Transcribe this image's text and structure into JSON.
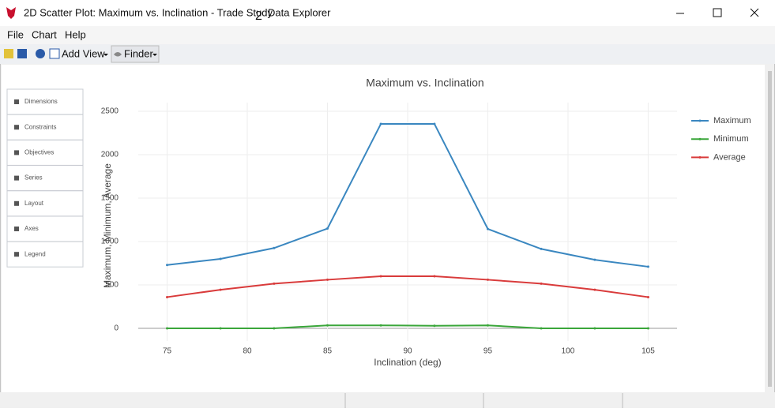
{
  "window": {
    "title_parts": [
      "2D Scatter Plot: Maximum vs. Inclination - Trade Study",
      "2",
      "Data Explorer"
    ]
  },
  "menu": [
    "File",
    "Chart",
    "Help"
  ],
  "toolbar": [
    "Add View",
    "Finder"
  ],
  "side_panel": [
    "Dimensions",
    "Constraints",
    "Objectives",
    "Series",
    "Layout",
    "Axes",
    "Legend"
  ],
  "chart_data": {
    "type": "line",
    "title": "Maximum vs. Inclination",
    "x_label": "Inclination (deg)",
    "y_label": "Maximum, Minimum, Average",
    "x": [
      75,
      78.33,
      81.67,
      85,
      88.33,
      91.67,
      95,
      98.33,
      101.67,
      105
    ],
    "series": [
      {
        "name": "Maximum",
        "color": "#3a87c0",
        "values": [
          730,
          800,
          925,
          1150,
          2355,
          2355,
          1145,
          915,
          790,
          710
        ]
      },
      {
        "name": "Minimum",
        "color": "#3aa63a",
        "values": [
          0,
          0,
          0,
          35,
          35,
          30,
          35,
          0,
          0,
          0
        ]
      },
      {
        "name": "Average",
        "color": "#d93b3b",
        "values": [
          360,
          445,
          515,
          560,
          600,
          600,
          560,
          515,
          445,
          360
        ]
      }
    ],
    "xlim": [
      73.2,
      106.8
    ],
    "ylim": [
      -145,
      2600
    ],
    "xticks": [
      75,
      80,
      85,
      90,
      95,
      100,
      105
    ],
    "yticks": [
      0,
      500,
      1000,
      1500,
      2000,
      2500
    ],
    "grid": true,
    "legend": "right"
  }
}
